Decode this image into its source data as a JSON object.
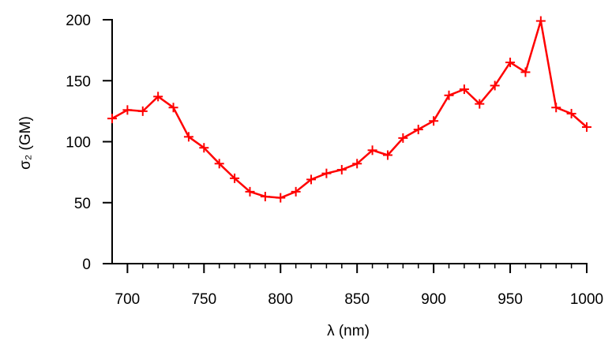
{
  "chart_data": {
    "type": "line",
    "xlabel": "λ (nm)",
    "ylabel": "σ₂ (GM)",
    "xlim": [
      690,
      1000
    ],
    "ylim": [
      0,
      200
    ],
    "xticks": [
      "700",
      "750",
      "800",
      "850",
      "900",
      "950",
      "1000"
    ],
    "yticks": [
      "0",
      "50",
      "100",
      "150",
      "200"
    ],
    "grid": false,
    "series": [
      {
        "color": "#ff0000",
        "marker": "plus",
        "x": [
          690,
          700,
          710,
          720,
          730,
          740,
          750,
          760,
          770,
          780,
          790,
          800,
          810,
          820,
          830,
          840,
          850,
          860,
          870,
          880,
          890,
          900,
          910,
          920,
          930,
          940,
          950,
          960,
          970,
          980,
          990,
          1000
        ],
        "y": [
          119,
          126,
          125,
          137,
          128,
          104,
          95,
          82,
          70,
          59,
          55,
          54,
          59,
          69,
          74,
          77,
          82,
          93,
          89,
          103,
          110,
          117,
          138,
          143,
          131,
          146,
          165,
          157,
          199,
          128,
          123,
          112
        ]
      }
    ]
  }
}
